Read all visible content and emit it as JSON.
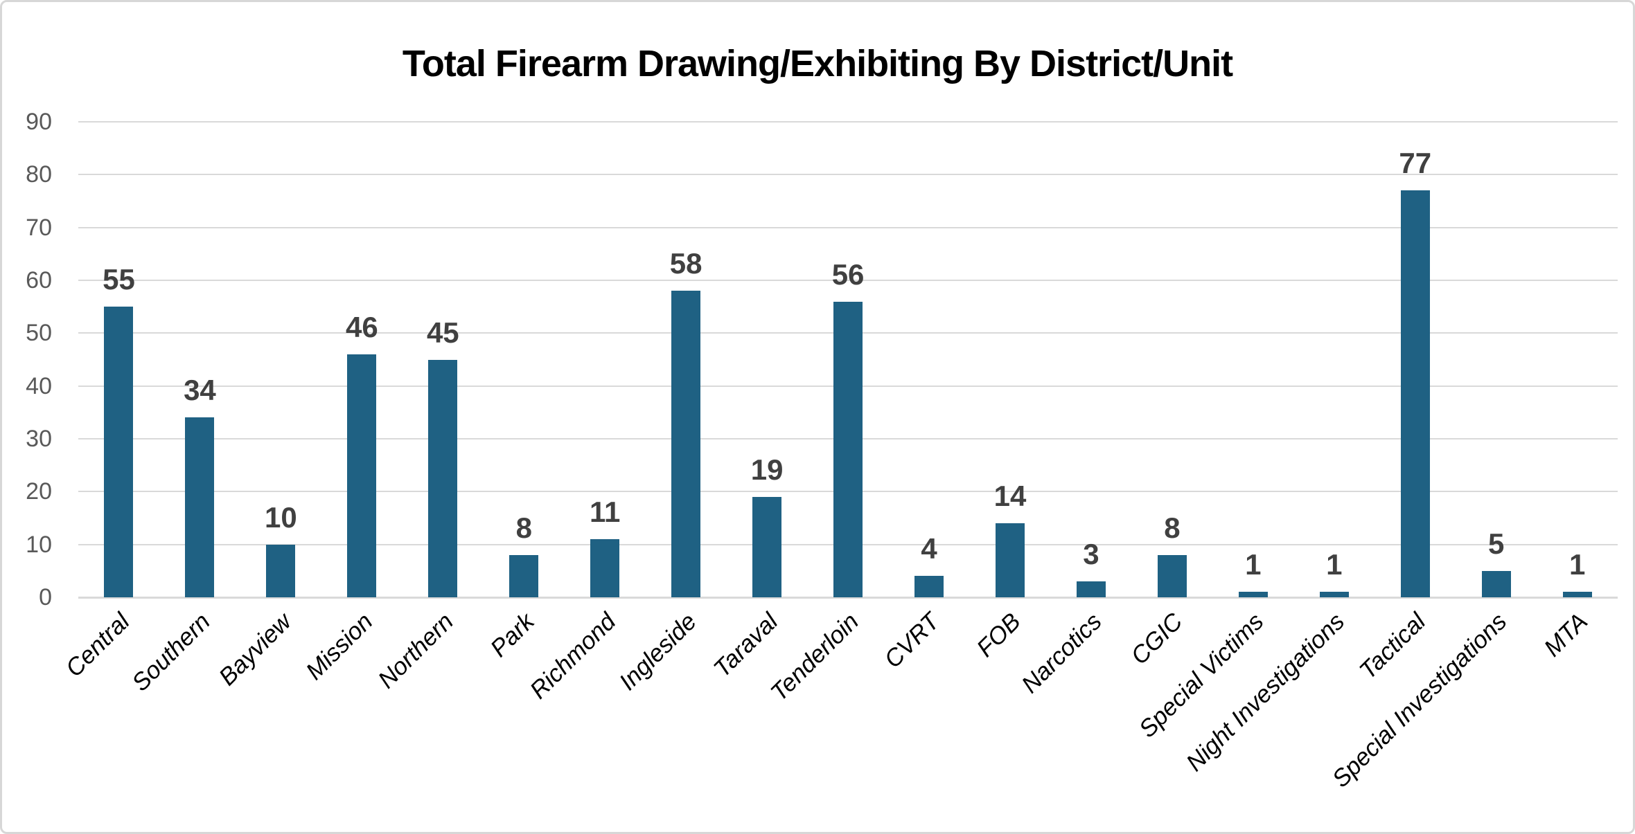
{
  "chart_data": {
    "type": "bar",
    "title": "Total Firearm Drawing/Exhibiting By District/Unit",
    "categories": [
      "Central",
      "Southern",
      "Bayview",
      "Mission",
      "Northern",
      "Park",
      "Richmond",
      "Ingleside",
      "Taraval",
      "Tenderloin",
      "CVRT",
      "FOB",
      "Narcotics",
      "CGIC",
      "Special Victims",
      "Night Investigations",
      "Tactical",
      "Special Investigations",
      "MTA"
    ],
    "values": [
      55,
      34,
      10,
      46,
      45,
      8,
      11,
      58,
      19,
      56,
      4,
      14,
      3,
      8,
      1,
      1,
      77,
      5,
      1
    ],
    "xlabel": "",
    "ylabel": "",
    "ylim": [
      0,
      90
    ],
    "yticks": [
      0,
      10,
      20,
      30,
      40,
      50,
      60,
      70,
      80,
      90
    ],
    "grid": "horizontal",
    "legend_position": "none",
    "data_labels": "above-bars",
    "x_tick_rotation_deg": 45,
    "colors": {
      "bar": "#1F6183",
      "gridline": "#D9D9D9",
      "axis_line": "#D9D9D9",
      "y_tick_label": "#595959",
      "data_label": "#404040",
      "x_tick_label": "#000000",
      "title": "#000000",
      "frame_border": "#D7D7D7",
      "background": "#FFFFFF"
    }
  }
}
